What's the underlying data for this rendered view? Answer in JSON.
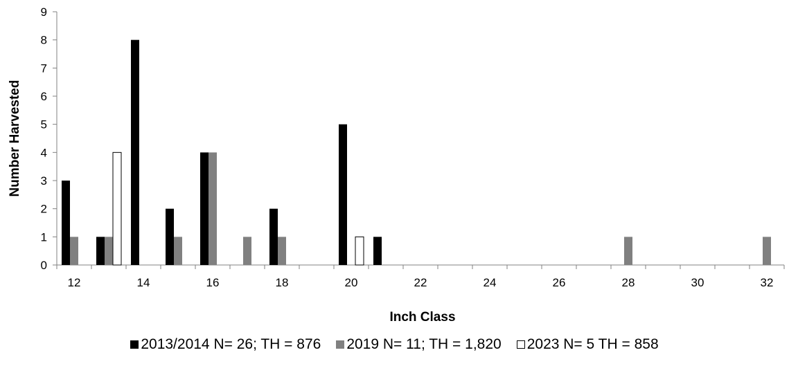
{
  "chart_data": {
    "type": "bar",
    "xlabel": "Inch Class",
    "ylabel": "Number Harvested",
    "ylim": [
      0,
      9
    ],
    "y_ticks": [
      "0",
      "1",
      "2",
      "3",
      "4",
      "5",
      "6",
      "7",
      "8",
      "9"
    ],
    "x_tick_labels": [
      "12",
      "14",
      "16",
      "18",
      "20",
      "22",
      "24",
      "26",
      "28",
      "30",
      "32"
    ],
    "categories": [
      "12",
      "13",
      "14",
      "15",
      "16",
      "17",
      "18",
      "19",
      "20",
      "21",
      "22",
      "23",
      "24",
      "25",
      "26",
      "27",
      "28",
      "29",
      "30",
      "31",
      "32"
    ],
    "series": [
      {
        "name": "2013/2014 N= 26; TH = 876",
        "color": "#000000",
        "values": [
          3,
          1,
          8,
          2,
          4,
          0,
          2,
          0,
          5,
          1,
          0,
          0,
          0,
          0,
          0,
          0,
          0,
          0,
          0,
          0,
          0
        ]
      },
      {
        "name": "2019 N= 11; TH = 1,820",
        "color": "#808080",
        "values": [
          1,
          1,
          0,
          1,
          4,
          1,
          1,
          0,
          0,
          0,
          0,
          0,
          0,
          0,
          0,
          0,
          1,
          0,
          0,
          0,
          1
        ]
      },
      {
        "name": "2023 N= 5 TH = 858",
        "color": "#ffffff",
        "values": [
          0,
          4,
          0,
          0,
          0,
          0,
          0,
          0,
          1,
          0,
          0,
          0,
          0,
          0,
          0,
          0,
          0,
          0,
          0,
          0,
          0
        ]
      }
    ],
    "grid": false,
    "legend_position": "bottom"
  }
}
